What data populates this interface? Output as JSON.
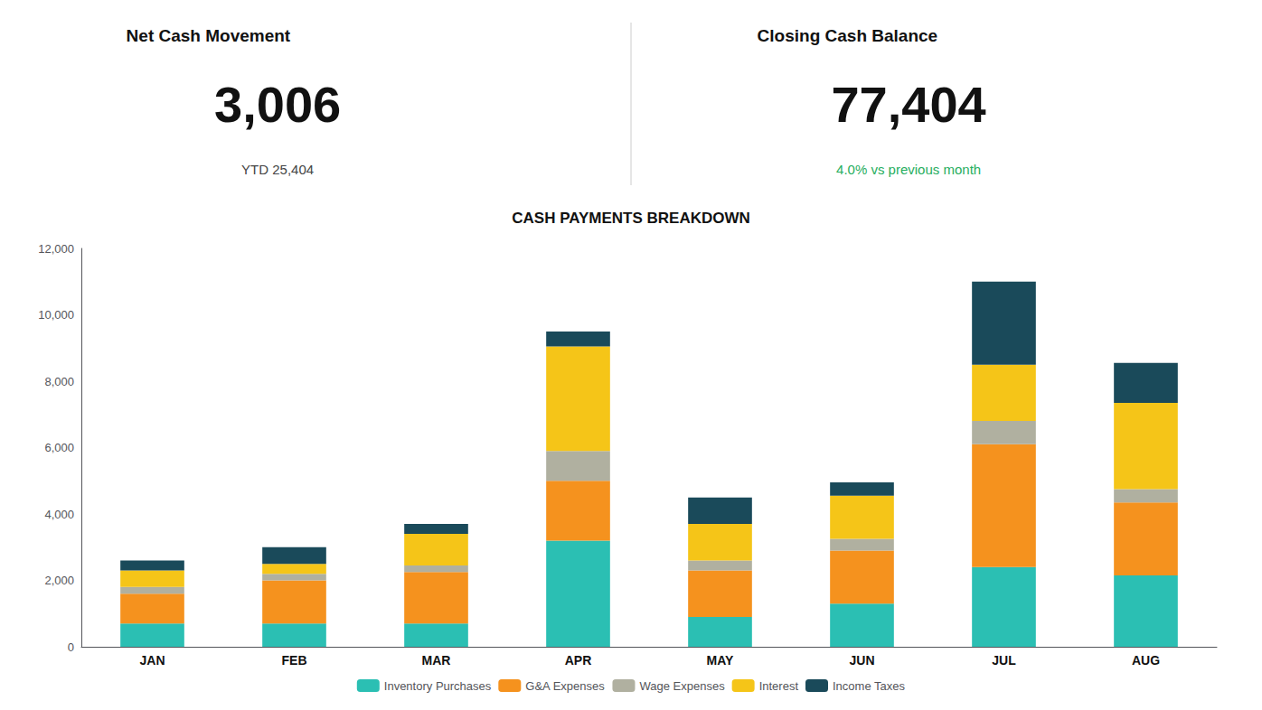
{
  "chart_data": {
    "type": "bar",
    "stacked": true,
    "title": "CASH PAYMENTS BREAKDOWN",
    "annotations": [
      {
        "text": "Net Cash Movement"
      },
      {
        "text": "3,006"
      },
      {
        "text": "YTD 25,404"
      },
      {
        "text": "Closing Cash Balance"
      },
      {
        "text": "77,404"
      },
      {
        "text": "4.0% vs previous month",
        "color": "#27ae60"
      }
    ],
    "categories": [
      "JAN",
      "FEB",
      "MAR",
      "APR",
      "MAY",
      "JUN",
      "JUL",
      "AUG"
    ],
    "series": [
      {
        "name": "Inventory Purchases",
        "color": "#2bbfb3",
        "values": [
          700,
          700,
          700,
          3200,
          900,
          1300,
          2400,
          2150
        ]
      },
      {
        "name": "G&A Expenses",
        "color": "#f5921e",
        "values": [
          900,
          1300,
          1550,
          1800,
          1400,
          1600,
          3700,
          2200
        ]
      },
      {
        "name": "Wage Expenses",
        "color": "#b0b0a0",
        "values": [
          200,
          200,
          200,
          900,
          300,
          350,
          700,
          400
        ]
      },
      {
        "name": "Interest",
        "color": "#f5c518",
        "values": [
          500,
          300,
          950,
          3150,
          1100,
          1300,
          1700,
          2600
        ]
      },
      {
        "name": "Income Taxes",
        "color": "#1a4a5a",
        "values": [
          300,
          500,
          300,
          450,
          800,
          400,
          2500,
          1200
        ]
      }
    ],
    "ylim": [
      0,
      12000
    ],
    "yticks": [
      0,
      {
        "value": 2000,
        "label": "2,000"
      },
      {
        "value": 4000,
        "label": "4,000"
      },
      {
        "value": 6000,
        "label": "6,000"
      },
      {
        "value": 8000,
        "label": "8,000"
      },
      {
        "value": 10000,
        "label": "10,000"
      },
      {
        "value": 12000,
        "label": "12,000"
      }
    ],
    "grid": false,
    "legend": "bottom"
  }
}
